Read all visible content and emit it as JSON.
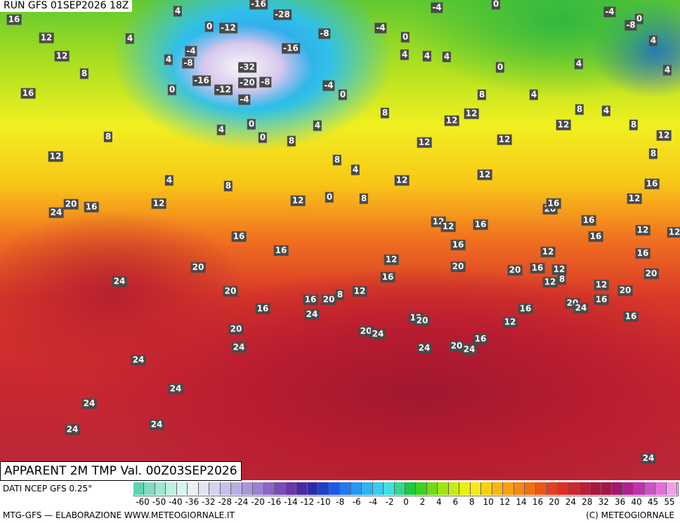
{
  "header": {
    "run": "RUN GFS 01SEP2026 18Z",
    "caption": "APPARENT 2M TMP Val. 00Z03SEP2026"
  },
  "map_labels": [
    16,
    12,
    12,
    8,
    16,
    4,
    4,
    -8,
    -4,
    0,
    -16,
    -12,
    -20,
    -8,
    -32,
    -4,
    0,
    -12,
    -16,
    -28,
    4,
    -4,
    -8,
    -16,
    -4,
    0,
    0,
    4,
    4,
    4,
    0,
    -4,
    0,
    -4,
    0,
    -8,
    4,
    4,
    4,
    8,
    4,
    8,
    4,
    12,
    8,
    12,
    8,
    16,
    12,
    12,
    12,
    12,
    12,
    12,
    8,
    4,
    0,
    0,
    4,
    8,
    8,
    12,
    4,
    8,
    8,
    4,
    0,
    8,
    12,
    12,
    12,
    20,
    16,
    24,
    16,
    16,
    20,
    24,
    20,
    16,
    16,
    20,
    8,
    12,
    24,
    20,
    24,
    24,
    24,
    24,
    24,
    24,
    16,
    12,
    12,
    12,
    16,
    16,
    20,
    20,
    16,
    12,
    12,
    12,
    8,
    20,
    16,
    16,
    16,
    12,
    16,
    20,
    12,
    20,
    16,
    20,
    24,
    16,
    16,
    12,
    12,
    20,
    20,
    24,
    24,
    20,
    24,
    16,
    24,
    12
  ],
  "colorbar": {
    "source": "DATI NCEP GFS 0.25°",
    "colors": [
      "#5fd3b0",
      "#7fdcc0",
      "#9fe6d0",
      "#bff0e0",
      "#d8f4ee",
      "#e8f2f6",
      "#dfe4f2",
      "#d0d4ee",
      "#c4c2ea",
      "#b8aee4",
      "#ab98dc",
      "#9c80d2",
      "#8c66c6",
      "#7a4cb8",
      "#6a36a8",
      "#4a2aa0",
      "#2c2ca8",
      "#1e40c8",
      "#1e5ae0",
      "#2078f0",
      "#2898f4",
      "#30b4f0",
      "#38ccf0",
      "#40e0e0",
      "#30d890",
      "#20c840",
      "#40d020",
      "#70dc10",
      "#a0e410",
      "#c8ec10",
      "#e8f010",
      "#f8e818",
      "#f8d010",
      "#f8b810",
      "#f8a010",
      "#f88810",
      "#f07010",
      "#e85818",
      "#e04020",
      "#d83028",
      "#c82830",
      "#b82038",
      "#a81840",
      "#a01848",
      "#a01870",
      "#b02090",
      "#c030b0",
      "#d050c8",
      "#e070d8",
      "#f0a0e8"
    ],
    "labels": [
      -60,
      -50,
      -40,
      -36,
      -32,
      -28,
      -24,
      -20,
      -16,
      -14,
      -12,
      -10,
      -8,
      -6,
      -4,
      -2,
      0,
      2,
      4,
      6,
      8,
      10,
      12,
      14,
      16,
      20,
      24,
      28,
      32,
      36,
      40,
      45,
      55
    ]
  },
  "footer": {
    "credit": "MTG-GFS — ELABORAZIONE WWW.METEOGIORNALE.IT",
    "copyright": "(C) METEOGIORNALE"
  }
}
